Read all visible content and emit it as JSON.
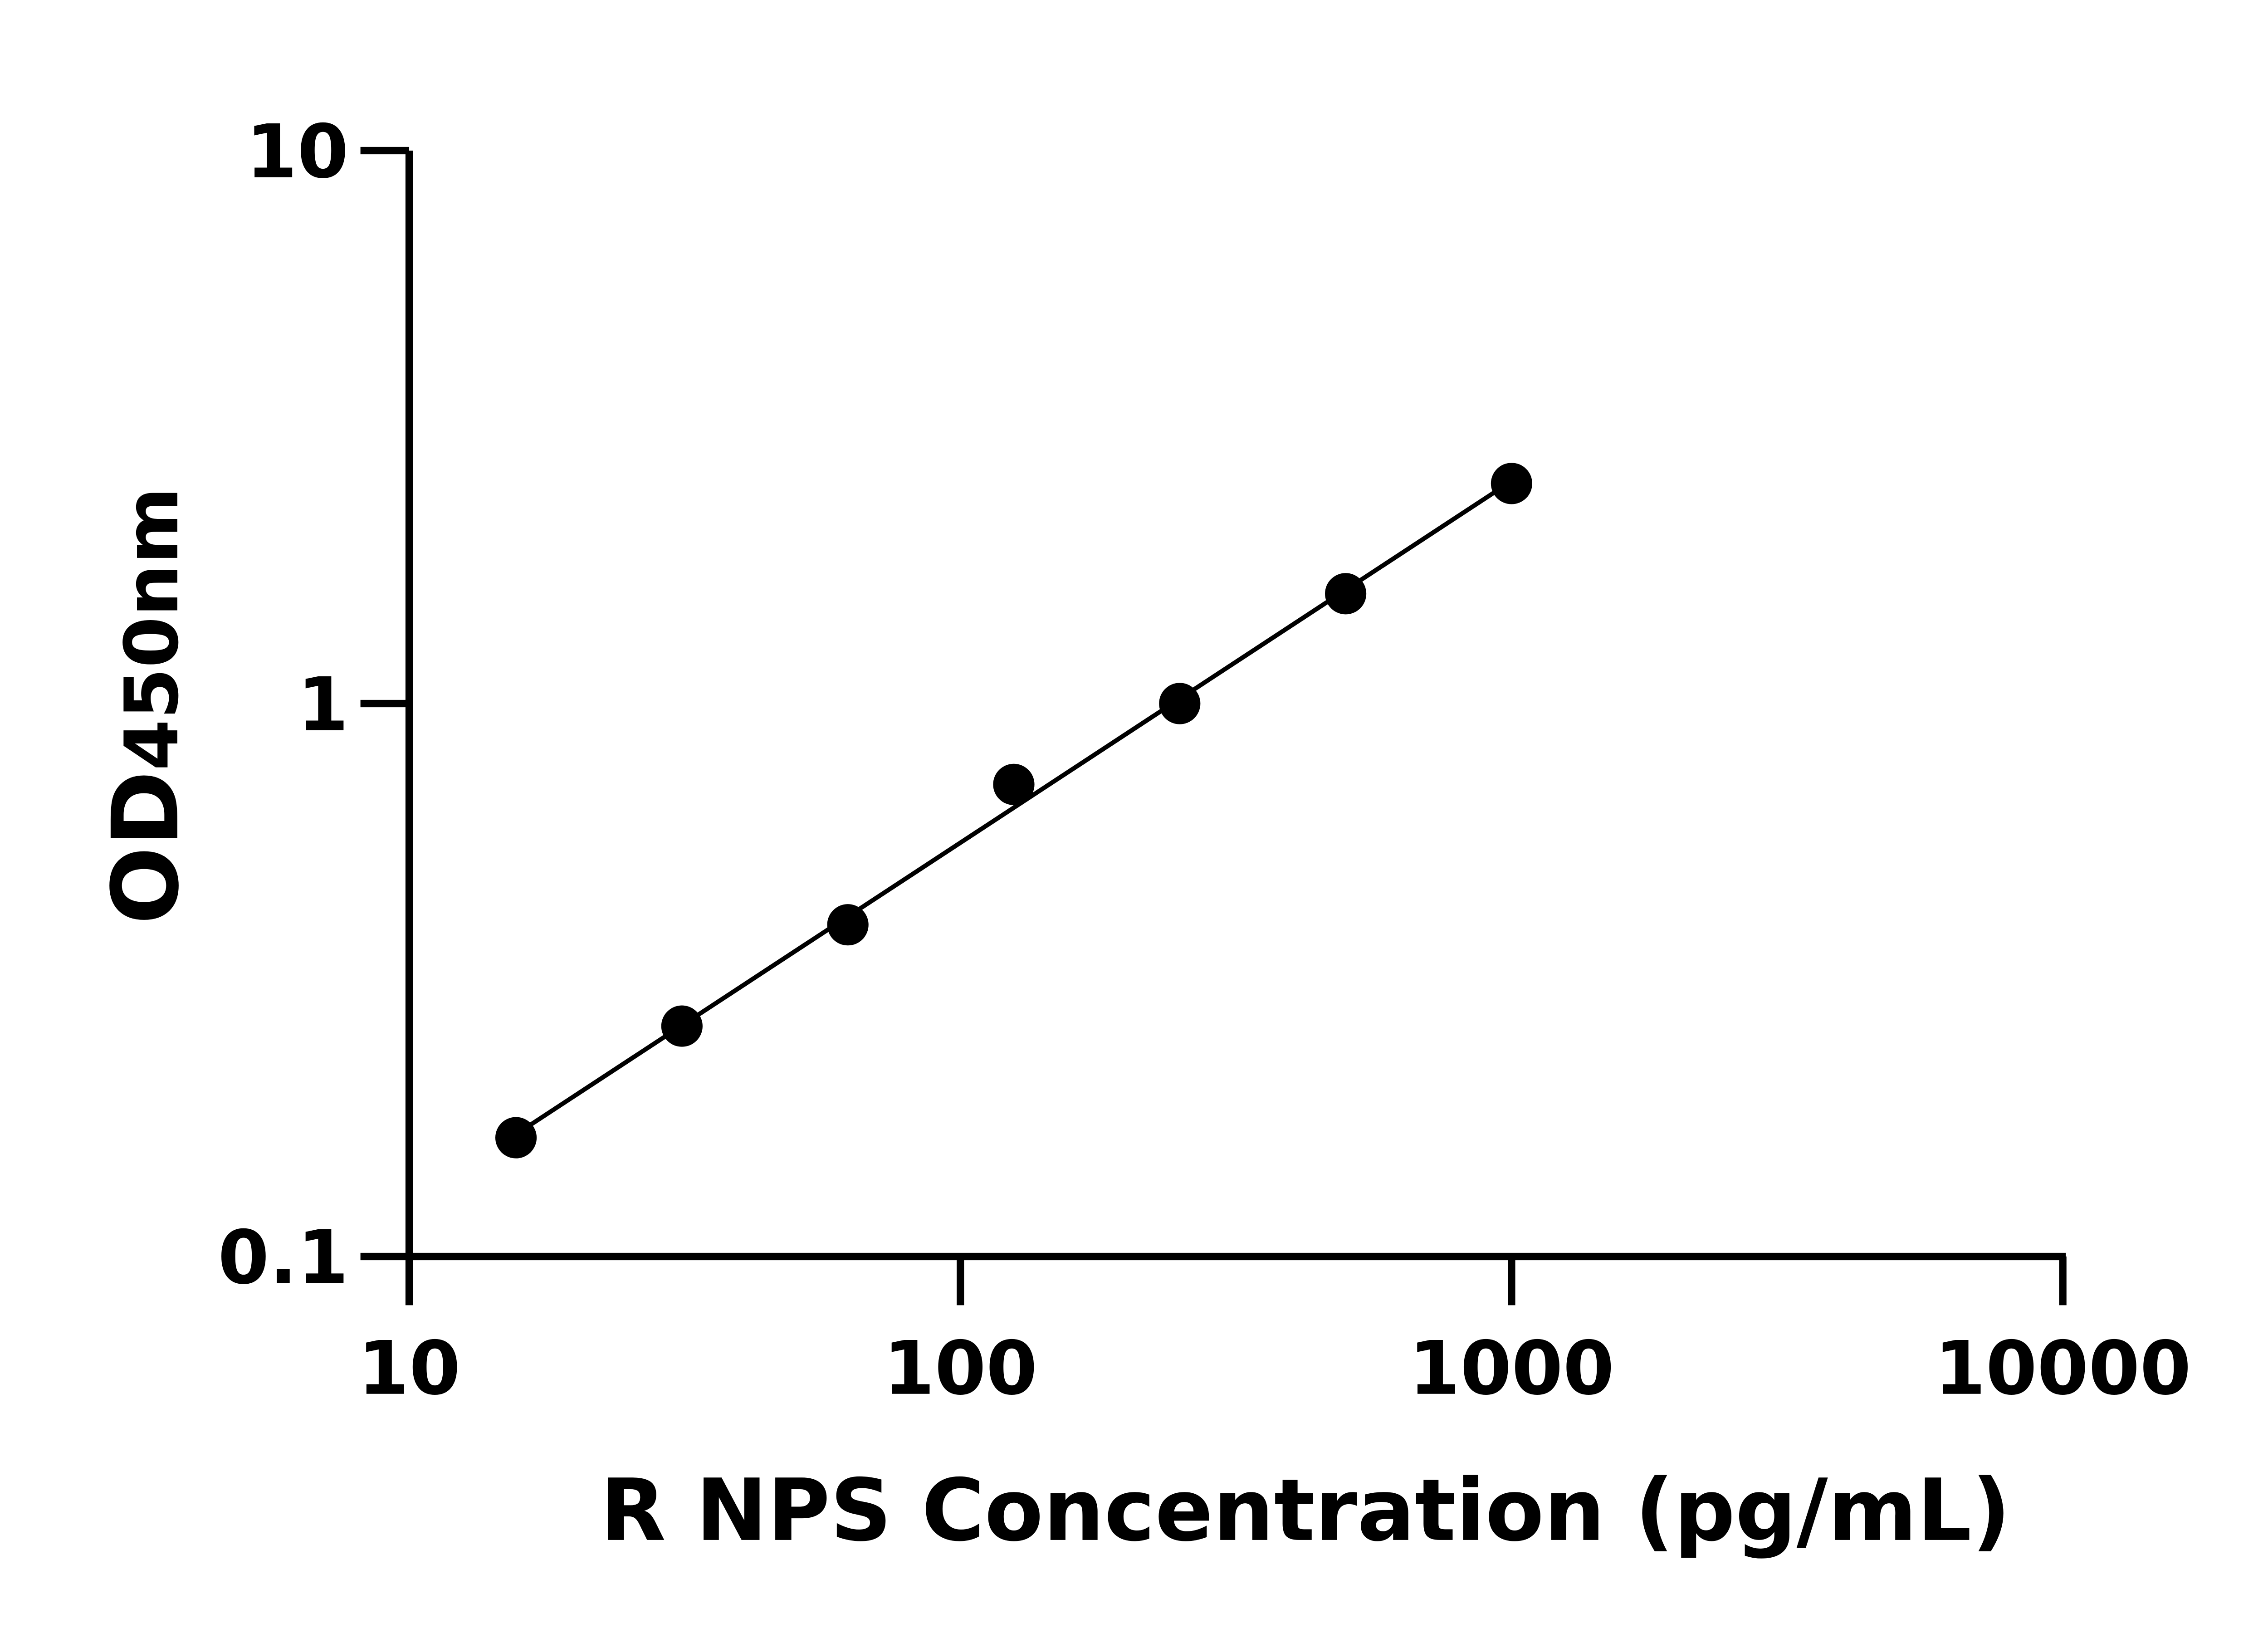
{
  "chart_data": {
    "type": "line",
    "title": "",
    "xlabel": "R NPS Concentration (pg/mL)",
    "ylabel": {
      "main": "OD",
      "sub": "450nm"
    },
    "xscale": "log",
    "yscale": "log",
    "xlim": [
      10,
      10000
    ],
    "ylim": [
      0.1,
      10
    ],
    "xticks": [
      "10",
      "100",
      "1000",
      "10000"
    ],
    "yticks": [
      "0.1",
      "1",
      "10"
    ],
    "grid": false,
    "legend": "none",
    "marker_color": "#000000",
    "series": [
      {
        "x": [
          15.625,
          31.25,
          62.5,
          125,
          250,
          500,
          1000
        ],
        "y": [
          0.164,
          0.261,
          0.398,
          0.714,
          1.0,
          1.58,
          2.5
        ]
      }
    ]
  }
}
